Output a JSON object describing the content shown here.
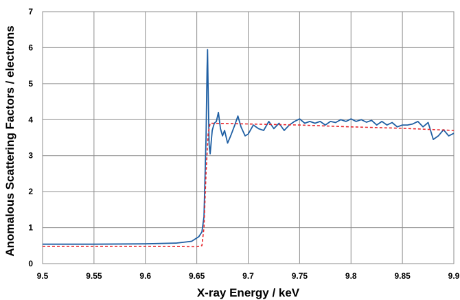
{
  "chart_data": {
    "type": "line",
    "title": "",
    "xlabel": "X-ray Energy / keV",
    "ylabel": "Anomalous Scattering Factors / electrons",
    "xlim": [
      9.5,
      9.9
    ],
    "ylim": [
      0,
      7
    ],
    "grid": true,
    "x_ticks": [
      9.5,
      9.55,
      9.6,
      9.65,
      9.7,
      9.75,
      9.8,
      9.85,
      9.9
    ],
    "x_tick_labels": [
      "9.5",
      "9.55",
      "9.6",
      "9.65",
      "9.7",
      "9.75",
      "9.8",
      "9.85",
      "9.9"
    ],
    "y_ticks": [
      0,
      1,
      2,
      3,
      4,
      5,
      6,
      7
    ],
    "y_tick_labels": [
      "0",
      "1",
      "2",
      "3",
      "4",
      "5",
      "6",
      "7"
    ],
    "series": [
      {
        "color": "#1f5fa3",
        "style": "solid",
        "x": [
          9.5,
          9.55,
          9.6,
          9.63,
          9.645,
          9.652,
          9.655,
          9.657,
          9.659,
          9.66,
          9.6605,
          9.661,
          9.662,
          9.663,
          9.665,
          9.667,
          9.669,
          9.671,
          9.673,
          9.675,
          9.677,
          9.68,
          9.683,
          9.687,
          9.69,
          9.693,
          9.697,
          9.7,
          9.705,
          9.71,
          9.715,
          9.72,
          9.725,
          9.73,
          9.735,
          9.74,
          9.745,
          9.75,
          9.755,
          9.76,
          9.765,
          9.77,
          9.775,
          9.78,
          9.785,
          9.79,
          9.795,
          9.8,
          9.805,
          9.81,
          9.815,
          9.82,
          9.825,
          9.83,
          9.835,
          9.84,
          9.845,
          9.85,
          9.855,
          9.86,
          9.865,
          9.87,
          9.875,
          9.88,
          9.885,
          9.89,
          9.895,
          9.9
        ],
        "y": [
          0.54,
          0.54,
          0.55,
          0.57,
          0.62,
          0.75,
          0.88,
          1.3,
          3.5,
          5.4,
          5.95,
          4.9,
          3.3,
          3.05,
          3.7,
          3.9,
          3.95,
          4.2,
          3.75,
          3.55,
          3.7,
          3.35,
          3.55,
          3.85,
          4.1,
          3.8,
          3.55,
          3.6,
          3.85,
          3.75,
          3.7,
          3.95,
          3.75,
          3.9,
          3.7,
          3.85,
          3.95,
          4.02,
          3.9,
          3.95,
          3.9,
          3.95,
          3.85,
          3.95,
          3.92,
          4.0,
          3.95,
          4.02,
          3.95,
          4.0,
          3.93,
          3.98,
          3.85,
          3.95,
          3.85,
          3.92,
          3.8,
          3.85,
          3.85,
          3.88,
          3.95,
          3.8,
          3.92,
          3.45,
          3.55,
          3.72,
          3.55,
          3.62
        ]
      },
      {
        "color": "#e8272d",
        "style": "dashed",
        "x": [
          9.5,
          9.6,
          9.65,
          9.655,
          9.657,
          9.659,
          9.661,
          9.663,
          9.7,
          9.75,
          9.8,
          9.85,
          9.9
        ],
        "y": [
          0.48,
          0.48,
          0.47,
          0.5,
          1.0,
          2.5,
          3.6,
          3.9,
          3.88,
          3.85,
          3.8,
          3.76,
          3.7
        ]
      }
    ]
  }
}
